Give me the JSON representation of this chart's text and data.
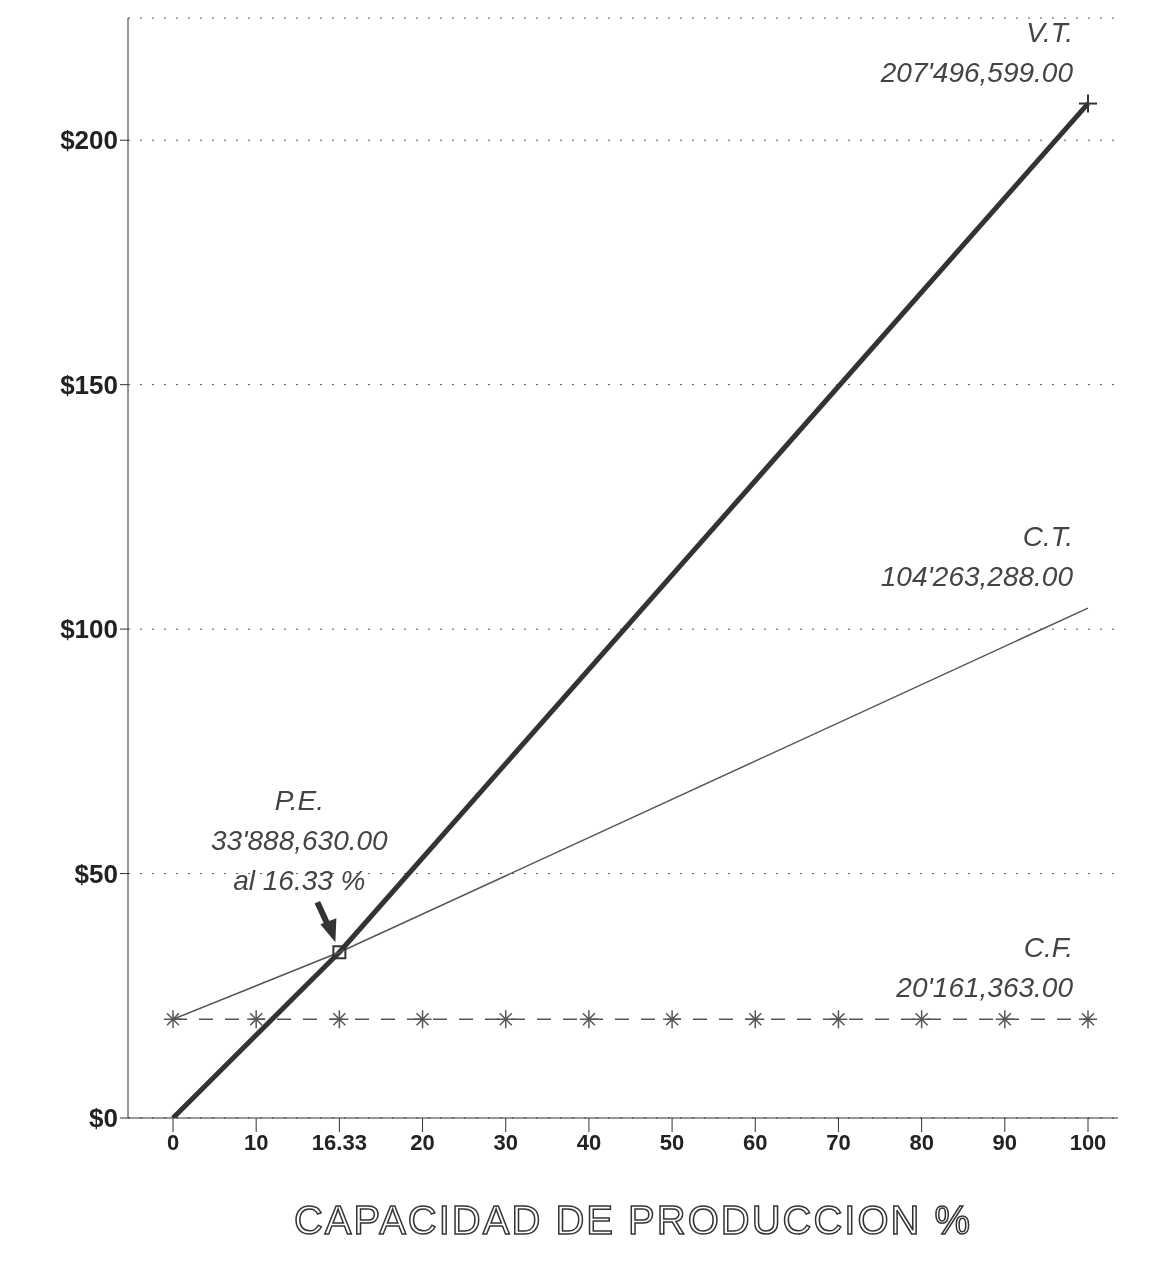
{
  "chart_data": {
    "type": "line",
    "xlabel": "CAPACIDAD DE PRODUCCION %",
    "categories": [
      "0",
      "10",
      "16.33",
      "20",
      "30",
      "40",
      "50",
      "60",
      "70",
      "80",
      "90",
      "100"
    ],
    "series": [
      {
        "color": "#333333",
        "line_style": "solid",
        "marker": "none",
        "values": [
          0,
          null,
          33.9,
          null,
          null,
          null,
          null,
          null,
          null,
          null,
          null,
          207.5
        ]
      },
      {
        "color": "#555555",
        "line_style": "solid",
        "marker": "none",
        "values": [
          20.2,
          null,
          33.9,
          null,
          null,
          null,
          null,
          null,
          null,
          null,
          null,
          104.3
        ]
      },
      {
        "color": "#555555",
        "line_style": "dashed",
        "marker": "cross",
        "values": [
          20.2,
          20.2,
          20.2,
          20.2,
          20.2,
          20.2,
          20.2,
          20.2,
          20.2,
          20.2,
          20.2,
          20.2
        ]
      },
      {
        "type": "scatter",
        "color": "#333333",
        "marker": "square",
        "values": [
          null,
          null,
          33.9,
          null,
          null,
          null,
          null,
          null,
          null,
          null,
          null,
          null
        ]
      },
      {
        "type": "scatter",
        "color": "#333333",
        "marker": "cross",
        "values": [
          null,
          null,
          null,
          null,
          null,
          null,
          null,
          null,
          null,
          null,
          null,
          207.5
        ]
      }
    ],
    "ylim": [
      0,
      225
    ],
    "yticks": [
      {
        "value": 0,
        "label": "$0"
      },
      {
        "value": 50,
        "label": "$50"
      },
      {
        "value": 100,
        "label": "$100"
      },
      {
        "value": 150,
        "label": "$150"
      },
      {
        "value": 200,
        "label": "$200"
      }
    ],
    "grid": "y",
    "legend": false,
    "annotations": [
      {
        "text": "V.T.\n207'496,599.00",
        "x": "100",
        "y": 207.5
      },
      {
        "text": "C.T.\n104'263,288.00",
        "x": "100",
        "y": 104.3
      },
      {
        "text": "P.E.\n33'888,630.00\nal 16.33 %",
        "x": "16.33",
        "y": 33.9
      },
      {
        "text": "C.F.\n20'161,363.00",
        "x": "100",
        "y": 20.2
      }
    ]
  }
}
